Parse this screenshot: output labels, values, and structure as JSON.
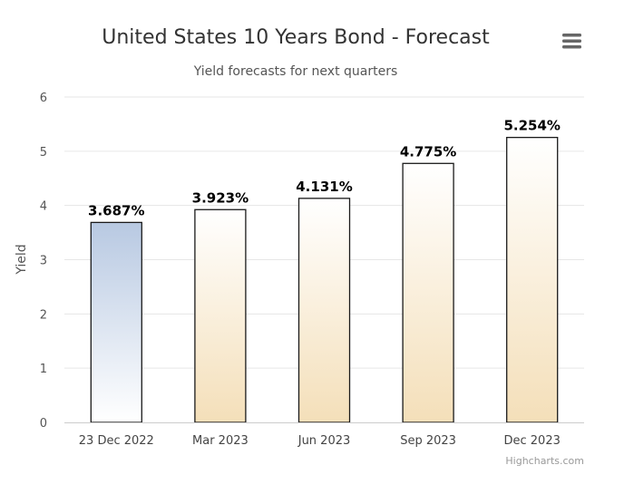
{
  "chart_data": {
    "type": "bar",
    "title": "United States 10 Years Bond - Forecast",
    "subtitle": "Yield forecasts for next quarters",
    "xlabel": "",
    "ylabel": "Yield",
    "categories": [
      "23 Dec 2022",
      "Mar 2023",
      "Jun 2023",
      "Sep 2023",
      "Dec 2023"
    ],
    "values": [
      3.687,
      3.923,
      4.131,
      4.775,
      5.254
    ],
    "data_labels": [
      "3.687%",
      "3.923%",
      "4.131%",
      "4.775%",
      "5.254%"
    ],
    "ylim": [
      0,
      6
    ],
    "yticks": [
      "0",
      "1",
      "2",
      "3",
      "4",
      "5",
      "6"
    ],
    "grid": true,
    "legend": "none",
    "colors": {
      "current_top": "#b8c9e2",
      "current_bottom": "#ffffff",
      "forecast_top": "#ffffff",
      "forecast_bottom": "#f4dfb9",
      "bar_border": "#1a1a1a",
      "grid": "#e6e6e6"
    }
  },
  "credits": "Highcharts.com",
  "menu_icon": "hamburger-menu-icon"
}
